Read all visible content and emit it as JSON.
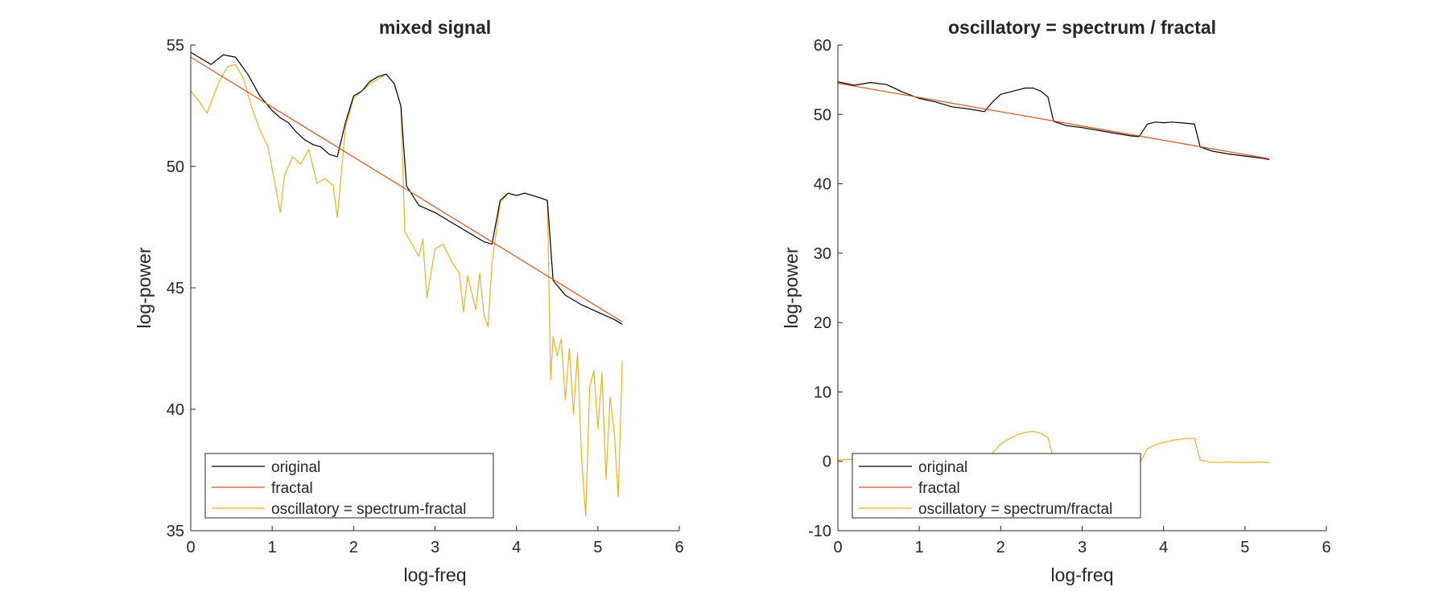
{
  "colors": {
    "original": "#000000",
    "fractal": "#D95319",
    "oscillatory": "#EDB120",
    "axis": "#262626"
  },
  "chart_data": [
    {
      "type": "line",
      "title": "mixed signal",
      "xlabel": "log-freq",
      "ylabel": "log-power",
      "xlim": [
        0,
        6
      ],
      "ylim": [
        35,
        55
      ],
      "xticks": [
        "0",
        "1",
        "2",
        "3",
        "4",
        "5",
        "6"
      ],
      "yticks": [
        "35",
        "40",
        "45",
        "50",
        "55"
      ],
      "grid": false,
      "legend_position": "bottom-left",
      "series": [
        {
          "name": "original",
          "color": "#000000",
          "x": [
            0,
            0.1,
            0.25,
            0.4,
            0.55,
            0.7,
            0.85,
            1.0,
            1.1,
            1.2,
            1.3,
            1.4,
            1.5,
            1.6,
            1.7,
            1.8,
            1.9,
            2.0,
            2.1,
            2.2,
            2.3,
            2.4,
            2.5,
            2.58,
            2.65,
            2.8,
            3.0,
            3.2,
            3.4,
            3.6,
            3.7,
            3.8,
            3.9,
            4.0,
            4.1,
            4.2,
            4.3,
            4.38,
            4.45,
            4.6,
            4.8,
            5.0,
            5.2,
            5.3
          ],
          "y": [
            54.7,
            54.5,
            54.2,
            54.6,
            54.5,
            53.8,
            52.9,
            52.3,
            52.0,
            51.8,
            51.4,
            51.1,
            50.9,
            50.8,
            50.5,
            50.4,
            51.8,
            52.9,
            53.1,
            53.5,
            53.7,
            53.8,
            53.4,
            52.5,
            49.2,
            48.4,
            48.1,
            47.7,
            47.3,
            46.9,
            46.8,
            48.6,
            48.9,
            48.8,
            48.9,
            48.8,
            48.7,
            48.6,
            45.3,
            44.7,
            44.3,
            44.0,
            43.7,
            43.5
          ]
        },
        {
          "name": "fractal",
          "color": "#D95319",
          "x": [
            0,
            5.3
          ],
          "y": [
            54.5,
            43.6
          ]
        },
        {
          "name": "oscillatory = spectrum-fractal",
          "color": "#EDB120",
          "x": [
            0,
            0.1,
            0.2,
            0.35,
            0.45,
            0.55,
            0.65,
            0.75,
            0.85,
            0.95,
            1.05,
            1.1,
            1.15,
            1.25,
            1.35,
            1.45,
            1.55,
            1.65,
            1.75,
            1.8,
            1.9,
            2.0,
            2.1,
            2.2,
            2.3,
            2.4,
            2.5,
            2.58,
            2.63,
            2.7,
            2.8,
            2.85,
            2.9,
            3.0,
            3.1,
            3.2,
            3.3,
            3.35,
            3.4,
            3.5,
            3.55,
            3.6,
            3.65,
            3.7,
            3.8,
            3.9,
            4.0,
            4.1,
            4.2,
            4.3,
            4.38,
            4.42,
            4.45,
            4.5,
            4.55,
            4.6,
            4.65,
            4.7,
            4.75,
            4.8,
            4.85,
            4.9,
            4.95,
            5.0,
            5.05,
            5.1,
            5.15,
            5.2,
            5.25,
            5.3
          ],
          "y": [
            53.1,
            52.7,
            52.2,
            53.5,
            54.1,
            54.2,
            53.6,
            52.4,
            51.5,
            50.8,
            49.0,
            48.1,
            49.6,
            50.4,
            50.1,
            50.7,
            49.3,
            49.5,
            49.2,
            47.9,
            51.6,
            52.8,
            53.1,
            53.4,
            53.6,
            53.8,
            53.4,
            52.5,
            47.3,
            46.9,
            46.3,
            47.0,
            44.6,
            46.6,
            46.8,
            46.1,
            45.6,
            44.0,
            45.5,
            44.1,
            45.6,
            43.9,
            43.4,
            46.0,
            48.5,
            48.9,
            48.8,
            48.9,
            48.8,
            48.7,
            48.6,
            41.2,
            43.0,
            42.2,
            42.9,
            40.4,
            42.5,
            39.8,
            42.3,
            38.0,
            35.6,
            40.9,
            41.6,
            39.2,
            41.5,
            37.1,
            40.5,
            39.1,
            36.4,
            42.0
          ]
        }
      ]
    },
    {
      "type": "line",
      "title": "oscillatory = spectrum / fractal",
      "xlabel": "log-freq",
      "ylabel": "log-power",
      "xlim": [
        0,
        6
      ],
      "ylim": [
        -10,
        60
      ],
      "xticks": [
        "0",
        "1",
        "2",
        "3",
        "4",
        "5",
        "6"
      ],
      "yticks": [
        "-10",
        "0",
        "10",
        "20",
        "30",
        "40",
        "50",
        "60"
      ],
      "grid": false,
      "legend_position": "bottom-left",
      "series": [
        {
          "name": "original",
          "color": "#000000",
          "x": [
            0,
            0.2,
            0.4,
            0.6,
            0.8,
            1.0,
            1.2,
            1.4,
            1.6,
            1.8,
            1.9,
            2.0,
            2.1,
            2.2,
            2.3,
            2.4,
            2.5,
            2.58,
            2.65,
            2.8,
            3.0,
            3.2,
            3.4,
            3.6,
            3.7,
            3.8,
            3.9,
            4.0,
            4.1,
            4.2,
            4.3,
            4.38,
            4.45,
            4.6,
            4.8,
            5.0,
            5.2,
            5.3
          ],
          "y": [
            54.7,
            54.2,
            54.6,
            54.3,
            53.2,
            52.3,
            51.8,
            51.1,
            50.8,
            50.4,
            51.8,
            52.9,
            53.2,
            53.5,
            53.8,
            53.8,
            53.3,
            52.5,
            49.0,
            48.4,
            48.1,
            47.7,
            47.3,
            46.9,
            46.8,
            48.6,
            48.9,
            48.8,
            48.9,
            48.8,
            48.7,
            48.6,
            45.3,
            44.7,
            44.3,
            44.0,
            43.7,
            43.5
          ]
        },
        {
          "name": "fractal",
          "color": "#D95319",
          "x": [
            0,
            5.3
          ],
          "y": [
            54.5,
            43.6
          ]
        },
        {
          "name": "oscillatory = spectrum/fractal",
          "color": "#EDB120",
          "x": [
            0,
            0.2,
            0.4,
            0.6,
            0.8,
            1.0,
            1.2,
            1.4,
            1.6,
            1.8,
            1.9,
            2.0,
            2.1,
            2.2,
            2.3,
            2.4,
            2.5,
            2.58,
            2.65,
            2.8,
            3.0,
            3.2,
            3.4,
            3.6,
            3.7,
            3.8,
            3.9,
            4.0,
            4.1,
            4.2,
            4.3,
            4.38,
            4.45,
            4.6,
            4.8,
            5.0,
            5.2,
            5.3
          ],
          "y": [
            0.2,
            0.3,
            0.3,
            0.2,
            0.1,
            0.0,
            -0.1,
            -0.2,
            -0.3,
            -0.3,
            1.2,
            2.5,
            3.2,
            3.8,
            4.2,
            4.3,
            4.0,
            3.4,
            0.3,
            0.0,
            -0.1,
            -0.2,
            -0.3,
            -0.3,
            -0.4,
            1.8,
            2.4,
            2.7,
            3.0,
            3.2,
            3.3,
            3.3,
            0.2,
            -0.2,
            -0.1,
            -0.2,
            -0.1,
            -0.2
          ]
        }
      ]
    }
  ]
}
